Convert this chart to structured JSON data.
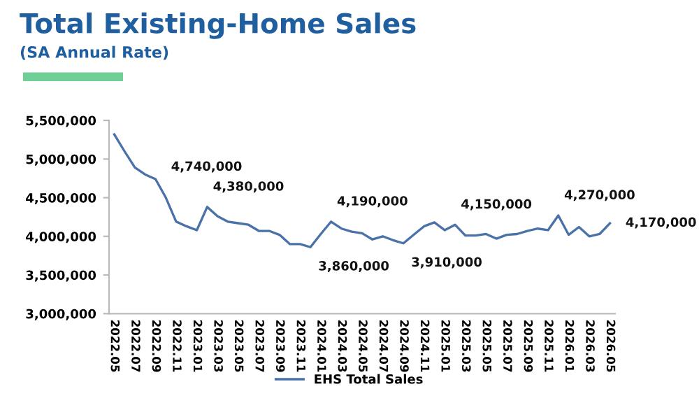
{
  "chart_data": {
    "type": "line",
    "title": "Total Existing-Home Sales",
    "subtitle": "(SA Annual Rate)",
    "categories": [
      "2022.05",
      null,
      "2022.07",
      null,
      "2022.09",
      null,
      "2022.11",
      null,
      "2023.01",
      null,
      "2023.03",
      null,
      "2023.05",
      null,
      "2023.07",
      null,
      "2023.09",
      null,
      "2023.11",
      null,
      "2024.01",
      null,
      "2024.03",
      null,
      "2024.05",
      null,
      "2024.07",
      null,
      "2024.09",
      null,
      "2024.11",
      null,
      "2025.01",
      null,
      "2025.03",
      null,
      "2025.05",
      null,
      "2025.07",
      null,
      "2025.09",
      null,
      "2025.11",
      null,
      "2026.01",
      null,
      "2026.03",
      null,
      "2026.05"
    ],
    "series": [
      {
        "name": "EHS Total Sales",
        "color": "#4a72a8",
        "values": [
          5320000,
          5100000,
          4890000,
          4800000,
          4740000,
          4500000,
          4190000,
          4130000,
          4080000,
          4380000,
          4260000,
          4190000,
          4170000,
          4150000,
          4070000,
          4070000,
          4020000,
          3900000,
          3900000,
          3860000,
          4030000,
          4190000,
          4100000,
          4060000,
          4040000,
          3960000,
          4000000,
          3950000,
          3910000,
          4020000,
          4130000,
          4180000,
          4080000,
          4150000,
          4010000,
          4010000,
          4030000,
          3970000,
          4020000,
          4030000,
          4070000,
          4100000,
          4080000,
          4270000,
          4020000,
          4120000,
          4000000,
          4030000,
          4170000
        ],
        "value_labels": [
          null,
          null,
          null,
          null,
          "4,740,000",
          null,
          null,
          null,
          null,
          "4,380,000",
          null,
          null,
          null,
          null,
          null,
          null,
          null,
          null,
          null,
          "3,860,000",
          null,
          "4,190,000",
          null,
          null,
          null,
          null,
          null,
          null,
          "3,910,000",
          null,
          null,
          null,
          null,
          "4,150,000",
          null,
          null,
          null,
          null,
          null,
          null,
          null,
          null,
          null,
          "4,270,000",
          null,
          null,
          null,
          null,
          "4,170,000"
        ]
      }
    ],
    "ylim": [
      3000000,
      5500000
    ],
    "yticks": [
      {
        "value": 3000000,
        "label": "3,000,000"
      },
      {
        "value": 3500000,
        "label": "3,500,000"
      },
      {
        "value": 4000000,
        "label": "4,000,000"
      },
      {
        "value": 4500000,
        "label": "4,500,000"
      },
      {
        "value": 5000000,
        "label": "5,000,000"
      },
      {
        "value": 5500000,
        "label": "5,500,000"
      }
    ],
    "grid": false,
    "legend": "bottom",
    "marker": "none",
    "line_style": "solid"
  }
}
